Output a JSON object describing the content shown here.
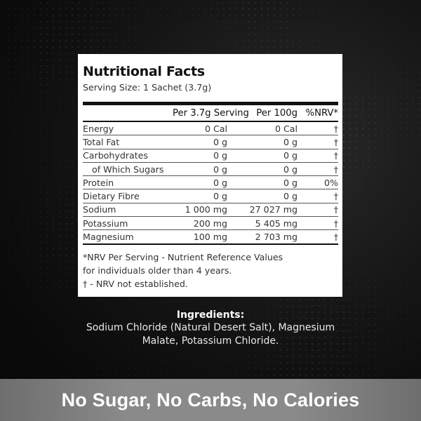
{
  "panel": {
    "title": "Nutritional Facts",
    "serving_size": "Serving Size: 1 Sachet (3.7g)",
    "columns": [
      "",
      "Per 3.7g Serving",
      "Per 100g",
      "%NRV*"
    ],
    "rows": [
      {
        "name": "Energy",
        "per_serving": "0 Cal",
        "per_100g": "0 Cal",
        "nrv": "†"
      },
      {
        "name": "Total Fat",
        "per_serving": "0 g",
        "per_100g": "0 g",
        "nrv": "†"
      },
      {
        "name": "Carbohydrates",
        "per_serving": "0 g",
        "per_100g": "0 g",
        "nrv": "†"
      },
      {
        "name": "of Which Sugars",
        "per_serving": "0 g",
        "per_100g": "0 g",
        "nrv": "†"
      },
      {
        "name": "Protein",
        "per_serving": "0 g",
        "per_100g": "0 g",
        "nrv": "0%"
      },
      {
        "name": "Dietary Fibre",
        "per_serving": "0 g",
        "per_100g": "0 g",
        "nrv": "†"
      },
      {
        "name": "Sodium",
        "per_serving": "1 000 mg",
        "per_100g": "27 027 mg",
        "nrv": "†"
      },
      {
        "name": "Potassium",
        "per_serving": "200 mg",
        "per_100g": "5 405 mg",
        "nrv": "†"
      },
      {
        "name": "Magnesium",
        "per_serving": "100 mg",
        "per_100g": "2 703 mg",
        "nrv": "†"
      }
    ],
    "footnotes": [
      "*NRV Per Serving - Nutrient Reference Values",
      "for individuals older than 4 years.",
      "† - NRV not established."
    ]
  },
  "ingredients": {
    "heading": "Ingredients:",
    "line1": "Sodium Chloride (Natural Desert Salt), Magnesium",
    "line2": "Malate, Potassium Chloride."
  },
  "banner": {
    "text": "No Sugar, No Carbs, No Calories"
  },
  "colors": {
    "background": "#0b0b0b",
    "panel": "#ffffff",
    "banner": "#8a8a8a",
    "text_dark": "#111111"
  }
}
